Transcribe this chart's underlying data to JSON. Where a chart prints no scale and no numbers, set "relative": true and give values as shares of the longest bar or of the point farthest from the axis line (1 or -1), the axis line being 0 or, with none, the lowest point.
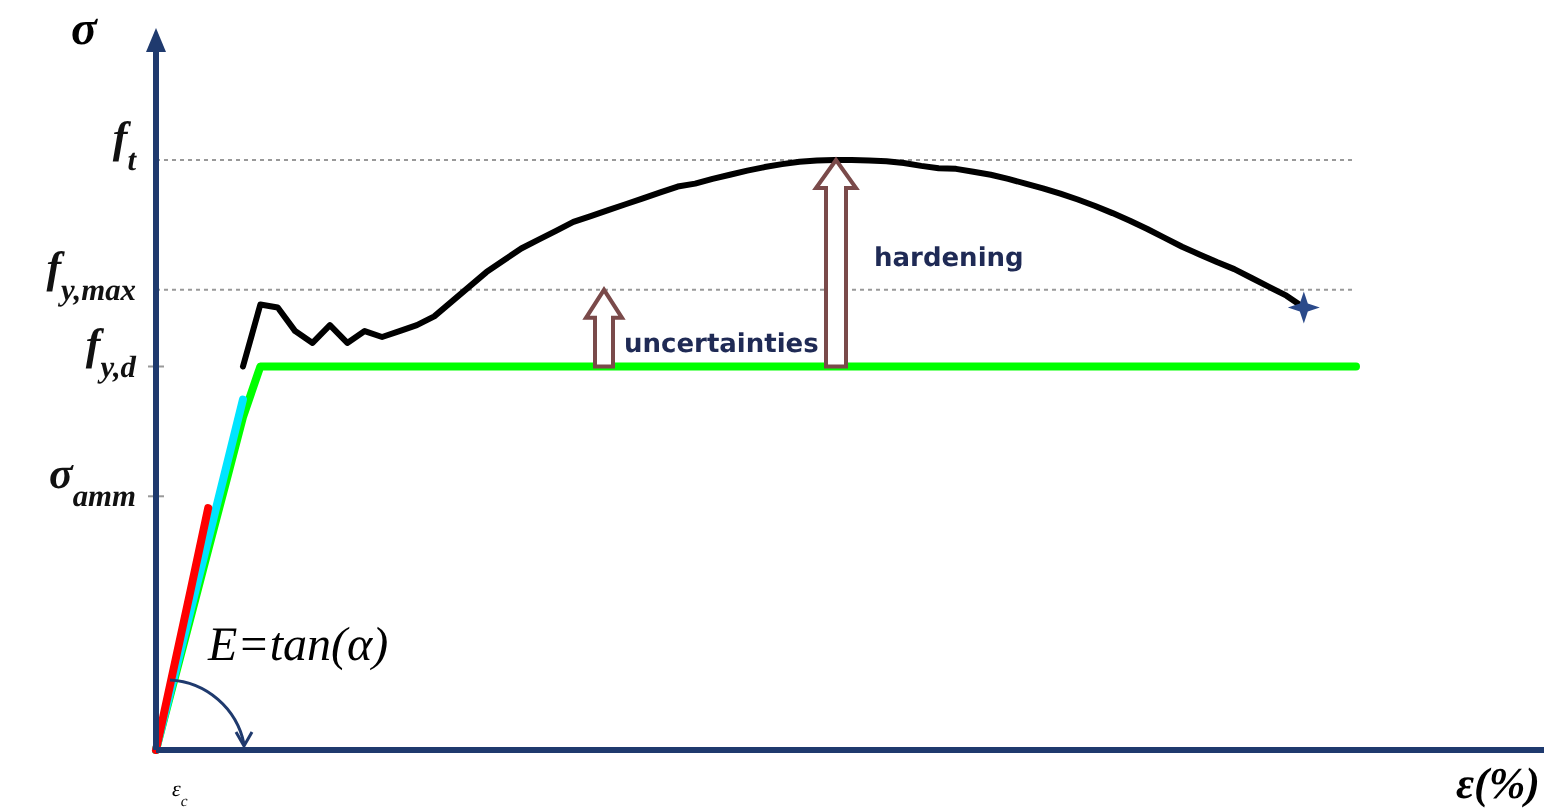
{
  "chart_data": {
    "type": "line",
    "relative": true,
    "xlabel": "ε(%)",
    "ylabel": "σ",
    "marker": "none",
    "line_style": "solid",
    "categories": [
      null,
      null,
      null,
      null,
      null,
      null,
      null,
      null,
      null,
      null,
      null,
      null,
      null,
      null,
      null,
      null,
      null,
      null,
      null,
      null,
      null,
      null,
      null,
      null,
      null,
      null,
      null,
      null,
      null,
      null,
      null,
      null,
      null,
      null,
      null,
      null,
      null,
      null,
      null,
      null,
      null,
      null,
      null,
      null,
      null,
      null,
      null,
      null,
      null,
      null,
      null,
      null,
      null,
      null,
      null,
      null,
      null,
      null,
      null,
      null,
      null,
      null,
      null,
      null,
      null,
      null,
      null,
      null,
      null,
      null
    ],
    "series": [
      {
        "color": "#00ff00",
        "values": [
          0,
          0.113,
          0.226,
          0.339,
          0.451,
          0.564,
          0.65,
          0.65,
          0.65,
          0.65,
          0.65,
          0.65,
          0.65,
          0.65,
          0.65,
          0.65,
          0.65,
          0.65,
          0.65,
          0.65,
          0.65,
          0.65,
          0.65,
          0.65,
          0.65,
          0.65,
          0.65,
          0.65,
          0.65,
          0.65,
          0.65,
          0.65,
          0.65,
          0.65,
          0.65,
          0.65,
          0.65,
          0.65,
          0.65,
          0.65,
          0.65,
          0.65,
          0.65,
          0.65,
          0.65,
          0.65,
          0.65,
          0.65,
          0.65,
          0.65,
          0.65,
          0.65,
          0.65,
          0.65,
          0.65,
          0.65,
          0.65,
          0.65,
          0.65,
          0.65,
          0.65,
          0.65,
          0.65,
          0.65,
          0.65,
          0.65,
          0.65,
          0.65,
          0.65,
          0.65
        ]
      },
      {
        "color": "#00e5ff",
        "values": [
          0,
          0.119,
          0.238,
          0.356,
          0.475,
          0.594,
          null,
          null,
          null,
          null,
          null,
          null,
          null,
          null,
          null,
          null,
          null,
          null,
          null,
          null,
          null,
          null,
          null,
          null,
          null,
          null,
          null,
          null,
          null,
          null,
          null,
          null,
          null,
          null,
          null,
          null,
          null,
          null,
          null,
          null,
          null,
          null,
          null,
          null,
          null,
          null,
          null,
          null,
          null,
          null,
          null,
          null,
          null,
          null,
          null,
          null,
          null,
          null,
          null,
          null,
          null,
          null,
          null,
          null,
          null,
          null,
          null,
          null,
          null,
          null
        ]
      },
      {
        "color": "#ff0000",
        "values": [
          0,
          0.136,
          0.272,
          0.41,
          null,
          null,
          null,
          null,
          null,
          null,
          null,
          null,
          null,
          null,
          null,
          null,
          null,
          null,
          null,
          null,
          null,
          null,
          null,
          null,
          null,
          null,
          null,
          null,
          null,
          null,
          null,
          null,
          null,
          null,
          null,
          null,
          null,
          null,
          null,
          null,
          null,
          null,
          null,
          null,
          null,
          null,
          null,
          null,
          null,
          null,
          null,
          null,
          null,
          null,
          null,
          null,
          null,
          null,
          null,
          null,
          null,
          null,
          null,
          null,
          null,
          null,
          null,
          null,
          null,
          null
        ]
      },
      {
        "color": "#000000",
        "values": [
          null,
          null,
          null,
          null,
          null,
          0.65,
          0.755,
          0.75,
          0.71,
          0.69,
          0.72,
          0.69,
          0.71,
          0.7,
          0.71,
          0.72,
          0.735,
          0.76,
          0.785,
          0.81,
          0.83,
          0.85,
          0.865,
          0.88,
          0.895,
          0.905,
          0.915,
          0.925,
          0.935,
          0.945,
          0.955,
          0.96,
          0.968,
          0.975,
          0.982,
          0.988,
          0.993,
          0.997,
          0.999,
          1,
          1,
          0.999,
          0.998,
          0.995,
          0.99,
          0.986,
          0.985,
          0.98,
          0.975,
          0.968,
          0.96,
          0.952,
          0.943,
          0.933,
          0.922,
          0.91,
          0.897,
          0.883,
          0.868,
          0.853,
          0.84,
          0.827,
          0.815,
          0.8,
          0.785,
          0.77,
          0.75,
          null,
          null,
          null
        ]
      }
    ],
    "ref_lines": [
      {
        "axis": "y",
        "value": 1,
        "label": "f$_{t}$",
        "line_style": "dotted",
        "color": "#999999"
      },
      {
        "axis": "y",
        "value": 0.78,
        "label": "f$_{y,max}$",
        "line_style": "dotted",
        "color": "#999999"
      },
      {
        "axis": "y",
        "value": 0.65,
        "label": "f$_{y,d}$"
      },
      {
        "axis": "y",
        "value": 0.43,
        "label": "σ$_{amm}$"
      }
    ],
    "annotations": [
      "uncertainties",
      "hardening",
      "E=tan(α)",
      "ε$_{c}$"
    ]
  }
}
